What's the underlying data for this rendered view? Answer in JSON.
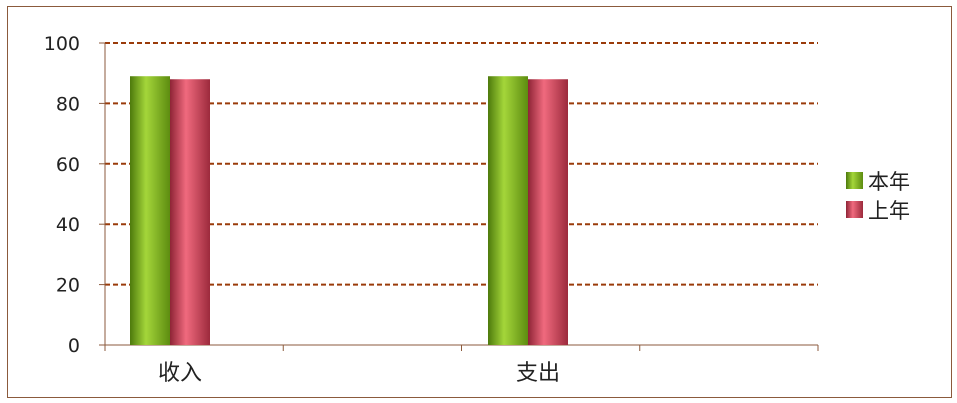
{
  "chart_data": {
    "type": "bar",
    "categories": [
      "收入",
      "支出"
    ],
    "series": [
      {
        "name": "本年",
        "values": [
          89,
          89
        ],
        "color": "#7fb51d"
      },
      {
        "name": "上年",
        "values": [
          88,
          88
        ],
        "color": "#cc4a5e"
      }
    ],
    "ylim": [
      0,
      100
    ],
    "yticks": [
      0,
      20,
      40,
      60,
      80,
      100
    ],
    "grid": true,
    "grid_color": "#9a3b0a",
    "legend_position": "right"
  }
}
